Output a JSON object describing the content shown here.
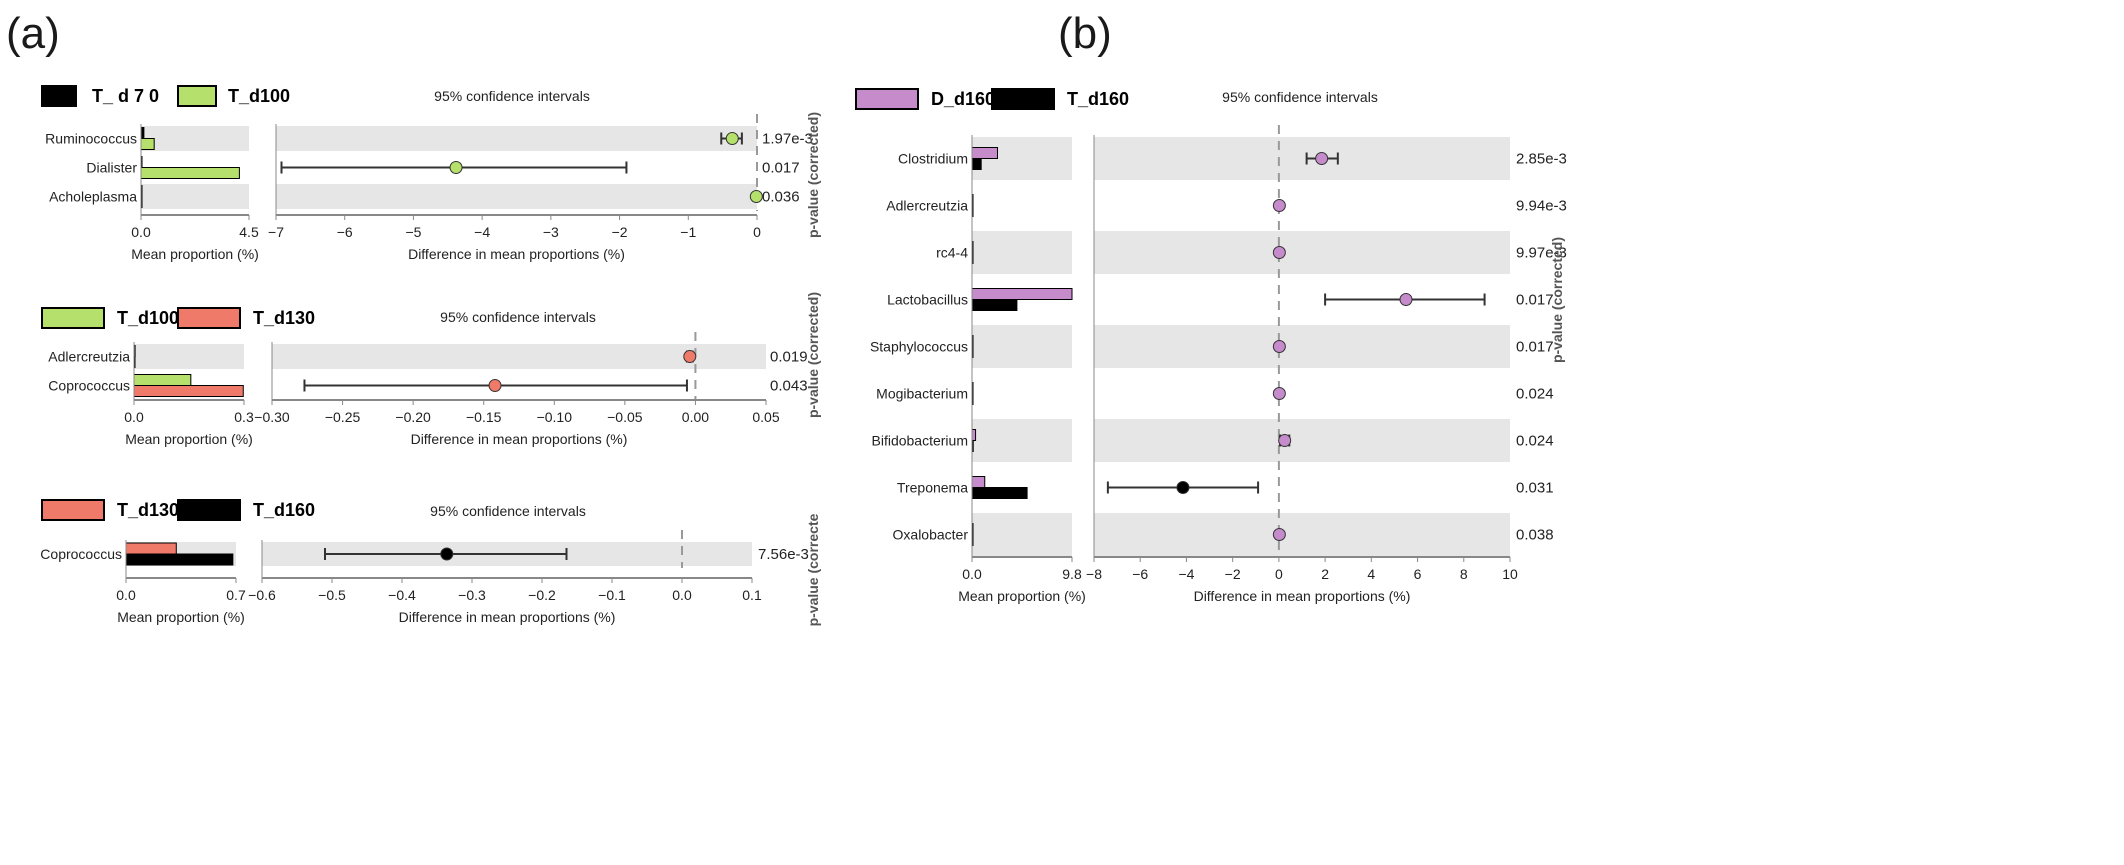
{
  "panel_labels": [
    "(a)",
    "(b)"
  ],
  "colors": {
    "black": "#000000",
    "green": "#b5e06b",
    "salmon": "#f07a6a",
    "purple": "#c58bcb",
    "band": "#e6e6e6",
    "axis": "#888888"
  },
  "chart_data": [
    {
      "type": "bar",
      "panel": "(a)",
      "legend": [
        {
          "name": "T_ d 7 0",
          "color": "#000000"
        },
        {
          "name": "T_d100",
          "color": "#b5e06b"
        }
      ],
      "ci_title": "95% confidence intervals",
      "categories": [
        "Ruminococcus",
        "Dialister",
        "Acholeplasma"
      ],
      "mean_proportion": {
        "xlabel": "Mean proportion (%)",
        "xlim": [
          0,
          4.5
        ],
        "ticks": [
          "0.0",
          "4.5"
        ],
        "series": [
          {
            "name": "T_ d 7 0",
            "values": [
              0.12,
              0.02,
              0.0
            ]
          },
          {
            "name": "T_d100",
            "values": [
              0.55,
              4.1,
              0.02
            ]
          }
        ]
      },
      "difference": {
        "xlabel": "Difference in mean proportions (%)",
        "xlim": [
          -7,
          0
        ],
        "ticks": [
          "−7",
          "−6",
          "−5",
          "−4",
          "−3",
          "−2",
          "−1",
          "0"
        ],
        "points": [
          {
            "value": -0.36,
            "ci": [
              -0.52,
              -0.22
            ],
            "color": "#b5e06b"
          },
          {
            "value": -4.38,
            "ci": [
              -6.92,
              -1.9
            ],
            "color": "#b5e06b"
          },
          {
            "value": -0.01,
            "ci": [
              -0.02,
              0.0
            ],
            "color": "#b5e06b"
          }
        ]
      },
      "p_values": [
        "1.97e-3",
        "0.017",
        "0.036"
      ],
      "p_axis_label": "p-value (corrected)"
    },
    {
      "type": "bar",
      "panel": "(a)",
      "legend": [
        {
          "name": "T_d100",
          "color": "#b5e06b"
        },
        {
          "name": "T_d130",
          "color": "#f07a6a"
        }
      ],
      "ci_title": "95% confidence intervals",
      "categories": [
        "Adlercreutzia",
        "Coprococcus"
      ],
      "mean_proportion": {
        "xlabel": "Mean proportion (%)",
        "xlim": [
          0,
          0.3
        ],
        "ticks": [
          "0.0",
          "0.3"
        ],
        "series": [
          {
            "name": "T_d100",
            "values": [
              0.003,
              0.155
            ]
          },
          {
            "name": "T_d130",
            "values": [
              0.0,
              0.298
            ]
          }
        ]
      },
      "difference": {
        "xlabel": "Difference in mean proportions (%)",
        "xlim": [
          -0.3,
          0.05
        ],
        "ticks": [
          "−0.30",
          "−0.25",
          "−0.20",
          "−0.15",
          "−0.10",
          "−0.05",
          "0.00",
          "0.05"
        ],
        "points": [
          {
            "value": -0.004,
            "ci": [
              -0.006,
              -0.002
            ],
            "color": "#f07a6a"
          },
          {
            "value": -0.142,
            "ci": [
              -0.277,
              -0.006
            ],
            "color": "#f07a6a"
          }
        ]
      },
      "p_values": [
        "0.019",
        "0.043"
      ],
      "p_axis_label": "p-value (corrected)"
    },
    {
      "type": "bar",
      "panel": "(a)",
      "legend": [
        {
          "name": "T_d130",
          "color": "#f07a6a"
        },
        {
          "name": "T_d160",
          "color": "#000000"
        }
      ],
      "ci_title": "95% confidence intervals",
      "categories": [
        "Coprococcus"
      ],
      "mean_proportion": {
        "xlabel": "Mean proportion (%)",
        "xlim": [
          0,
          0.7
        ],
        "ticks": [
          "0.0",
          "0.7"
        ],
        "series": [
          {
            "name": "T_d130",
            "values": [
              0.32
            ]
          },
          {
            "name": "T_d160",
            "values": [
              0.68
            ]
          }
        ]
      },
      "difference": {
        "xlabel": "Difference in mean proportions (%)",
        "xlim": [
          -0.6,
          0.1
        ],
        "ticks": [
          "−0.6",
          "−0.5",
          "−0.4",
          "−0.3",
          "−0.2",
          "−0.1",
          "0.0",
          "0.1"
        ],
        "points": [
          {
            "value": -0.336,
            "ci": [
              -0.51,
              -0.165
            ],
            "color": "#000000"
          }
        ]
      },
      "p_values": [
        "7.56e-3"
      ],
      "p_axis_label": "p-value (correcte"
    },
    {
      "type": "bar",
      "panel": "(b)",
      "legend": [
        {
          "name": "D_d160",
          "color": "#c58bcb"
        },
        {
          "name": "T_d160",
          "color": "#000000"
        }
      ],
      "ci_title": "95% confidence intervals",
      "categories": [
        "Clostridium",
        "Adlercreutzia",
        "rc4-4",
        "Lactobacillus",
        "Staphylococcus",
        "Mogibacterium",
        "Bifidobacterium",
        "Treponema",
        "Oxalobacter"
      ],
      "mean_proportion": {
        "xlabel": "Mean proportion (%)",
        "xlim": [
          0,
          9.8
        ],
        "ticks": [
          "0.0",
          "9.8"
        ],
        "series": [
          {
            "name": "D_d160",
            "values": [
              2.5,
              0.02,
              0.02,
              9.8,
              0.03,
              0.02,
              0.35,
              1.25,
              0.02
            ]
          },
          {
            "name": "T_d160",
            "values": [
              0.9,
              0.0,
              0.0,
              4.4,
              0.0,
              0.0,
              0.12,
              5.4,
              0.0
            ]
          }
        ]
      },
      "difference": {
        "xlabel": "Difference in mean proportions (%)",
        "xlim": [
          -8,
          10
        ],
        "ticks": [
          "−8",
          "−6",
          "−4",
          "−2",
          "0",
          "2",
          "4",
          "6",
          "8",
          "10"
        ],
        "points": [
          {
            "value": 1.85,
            "ci": [
              1.2,
              2.55
            ],
            "color": "#c58bcb"
          },
          {
            "value": 0.02,
            "ci": [
              0.0,
              0.04
            ],
            "color": "#c58bcb"
          },
          {
            "value": 0.02,
            "ci": [
              0.0,
              0.04
            ],
            "color": "#c58bcb"
          },
          {
            "value": 5.5,
            "ci": [
              2.0,
              8.9
            ],
            "color": "#c58bcb"
          },
          {
            "value": 0.02,
            "ci": [
              0.0,
              0.04
            ],
            "color": "#c58bcb"
          },
          {
            "value": 0.02,
            "ci": [
              0.0,
              0.04
            ],
            "color": "#c58bcb"
          },
          {
            "value": 0.25,
            "ci": [
              0.05,
              0.45
            ],
            "color": "#c58bcb"
          },
          {
            "value": -4.15,
            "ci": [
              -7.4,
              -0.9
            ],
            "color": "#000000"
          },
          {
            "value": 0.02,
            "ci": [
              0.0,
              0.04
            ],
            "color": "#c58bcb"
          }
        ]
      },
      "p_values": [
        "2.85e-3",
        "9.94e-3",
        "9.97e-3",
        "0.017",
        "0.017",
        "0.024",
        "0.024",
        "0.031",
        "0.038"
      ],
      "p_axis_label": "p-value (corrected)"
    }
  ]
}
